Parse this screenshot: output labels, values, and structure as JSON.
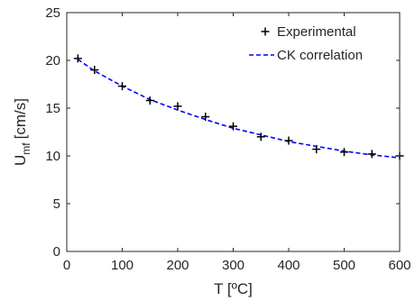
{
  "chart_data": {
    "type": "scatter",
    "xlabel": "T [ºC]",
    "ylabel_main": "U",
    "ylabel_sub": "mf",
    "ylabel_unit": "[cm/s]",
    "xlim": [
      0,
      600
    ],
    "ylim": [
      0,
      25
    ],
    "xticks": [
      0,
      100,
      200,
      300,
      400,
      500,
      600
    ],
    "yticks": [
      0,
      5,
      10,
      15,
      20,
      25
    ],
    "grid": false,
    "legend_position": "top-right",
    "series": [
      {
        "name": "Experimental",
        "style": "plus-markers",
        "color": "#000000",
        "x": [
          20,
          50,
          100,
          150,
          200,
          250,
          300,
          350,
          400,
          450,
          500,
          550,
          600
        ],
        "y": [
          20.2,
          19.0,
          17.3,
          15.8,
          15.2,
          14.1,
          13.1,
          12.0,
          11.6,
          10.7,
          10.4,
          10.2,
          10.0
        ]
      },
      {
        "name": "CK correlation",
        "style": "dashed-line",
        "color": "#0000ff",
        "x": [
          20,
          50,
          100,
          150,
          200,
          250,
          300,
          350,
          400,
          450,
          500,
          550,
          600
        ],
        "y": [
          20.1,
          18.9,
          17.3,
          15.9,
          14.8,
          13.8,
          12.9,
          12.2,
          11.5,
          11.0,
          10.5,
          10.1,
          9.8
        ]
      }
    ]
  }
}
